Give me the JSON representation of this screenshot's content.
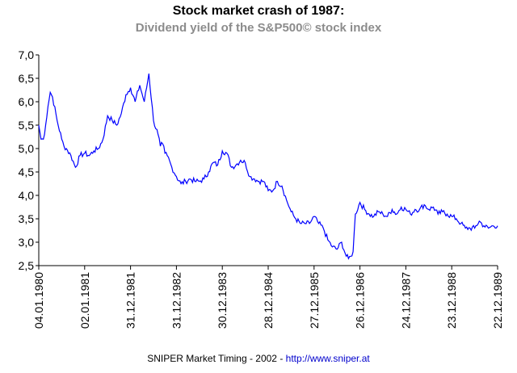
{
  "chart_data": {
    "type": "line",
    "title": "Stock market crash of 1987:",
    "subtitle": "Dividend yield of the S&P500© stock index",
    "footer": {
      "credit": "SNIPER Market Timing - 2002",
      "separator": "-",
      "url": "http://www.sniper.at"
    },
    "ylim": [
      2.5,
      7.0
    ],
    "y_ticks": [
      "7,0",
      "6,5",
      "6,0",
      "5,5",
      "5,0",
      "4,5",
      "4,0",
      "3,5",
      "3,0",
      "2,5"
    ],
    "x_ticks": [
      "04.01.1980",
      "02.01.1981",
      "31.12.1981",
      "31.12.1982",
      "30.12.1983",
      "28.12.1984",
      "27.12.1985",
      "26.12.1986",
      "24.12.1987",
      "23.12.1988",
      "22.12.1989"
    ],
    "grid": false,
    "series": [
      {
        "color": "#0000ff",
        "x": [
          0,
          0.05,
          0.1,
          0.15,
          0.2,
          0.25,
          0.3,
          0.4,
          0.5,
          0.55,
          0.6,
          0.7,
          0.8,
          0.9,
          1.0,
          1.1,
          1.2,
          1.3,
          1.4,
          1.5,
          1.6,
          1.7,
          1.8,
          1.9,
          2.0,
          2.1,
          2.2,
          2.3,
          2.4,
          2.5,
          2.6,
          2.65,
          2.7,
          2.75,
          2.8,
          2.9,
          3.0,
          3.1,
          3.2,
          3.3,
          3.4,
          3.5,
          3.6,
          3.7,
          3.8,
          3.9,
          4.0,
          4.1,
          4.2,
          4.3,
          4.4,
          4.5,
          4.6,
          4.7,
          4.8,
          4.9,
          5.0,
          5.1,
          5.2,
          5.3,
          5.4,
          5.5,
          5.6,
          5.7,
          5.8,
          5.9,
          6.0,
          6.1,
          6.2,
          6.3,
          6.4,
          6.5,
          6.6,
          6.7,
          6.75,
          6.8,
          6.85,
          6.9,
          7.0,
          7.1,
          7.2,
          7.3,
          7.4,
          7.5,
          7.6,
          7.7,
          7.8,
          7.9,
          8.0,
          8.1,
          8.2,
          8.3,
          8.4,
          8.5,
          8.6,
          8.7,
          8.8,
          8.9,
          9.0,
          9.1,
          9.2,
          9.3,
          9.4,
          9.5,
          9.6,
          9.7,
          9.8,
          9.9,
          10.0
        ],
        "values": [
          5.5,
          5.2,
          5.2,
          5.5,
          5.9,
          6.2,
          6.1,
          5.6,
          5.2,
          5.05,
          5.0,
          4.85,
          4.6,
          4.85,
          4.9,
          4.85,
          4.95,
          5.0,
          5.2,
          5.7,
          5.6,
          5.5,
          5.75,
          6.15,
          6.3,
          6.0,
          6.35,
          6.0,
          6.6,
          5.6,
          5.3,
          5.05,
          5.1,
          4.9,
          4.85,
          4.6,
          4.4,
          4.25,
          4.3,
          4.35,
          4.3,
          4.3,
          4.35,
          4.5,
          4.7,
          4.65,
          4.95,
          4.9,
          4.6,
          4.65,
          4.75,
          4.7,
          4.4,
          4.35,
          4.3,
          4.3,
          4.1,
          4.1,
          4.3,
          4.2,
          3.9,
          3.65,
          3.5,
          3.4,
          3.4,
          3.4,
          3.55,
          3.4,
          3.3,
          3.05,
          2.9,
          2.85,
          3.0,
          2.7,
          2.65,
          2.7,
          2.8,
          3.6,
          3.85,
          3.7,
          3.6,
          3.55,
          3.65,
          3.6,
          3.55,
          3.7,
          3.6,
          3.75,
          3.7,
          3.6,
          3.7,
          3.7,
          3.8,
          3.7,
          3.75,
          3.6,
          3.65,
          3.6,
          3.55,
          3.5,
          3.4,
          3.3,
          3.3,
          3.3,
          3.45,
          3.35,
          3.3,
          3.35,
          3.35
        ]
      }
    ]
  }
}
